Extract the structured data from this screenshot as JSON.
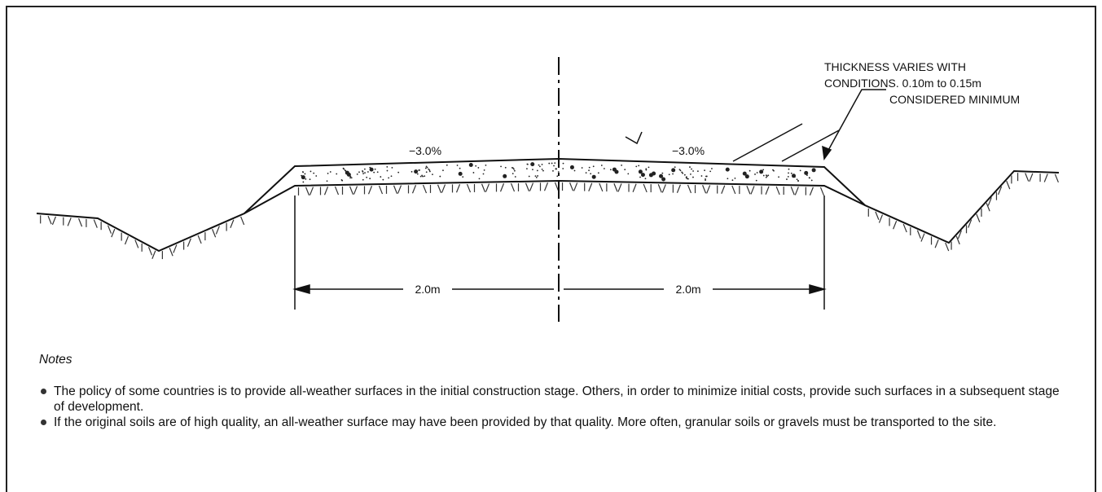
{
  "diagram": {
    "slope_left": "−3.0%",
    "slope_right": "−3.0%",
    "callout": [
      "THICKNESS VARIES WITH",
      "CONDITIONS. 0.10m to 0.15m",
      "CONSIDERED MINIMUM"
    ],
    "dimension_left": "2.0m",
    "dimension_right": "2.0m"
  },
  "notes": {
    "title": "Notes",
    "items": [
      "The policy of some countries is to provide all-weather surfaces in the initial construction stage. Others, in order to minimize initial costs, provide such surfaces in a subsequent stage of development.",
      "If the original soils are of high quality, an all-weather surface may have been provided by that quality. More often, granular soils or gravels must be transported to the site."
    ]
  }
}
